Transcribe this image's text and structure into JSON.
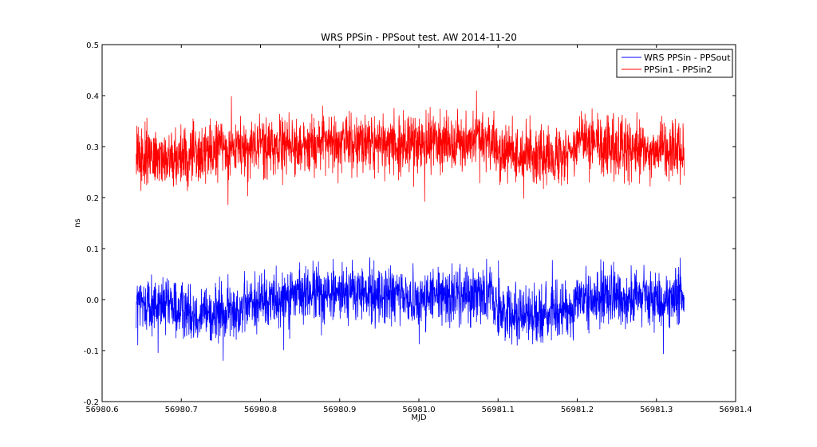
{
  "chart_data": {
    "type": "line",
    "title": "WRS PPSin - PPSout test. AW 2014-11-20",
    "xlabel": "MJD",
    "ylabel": "ns",
    "xlim": [
      56980.6,
      56981.4
    ],
    "ylim": [
      -0.2,
      0.5
    ],
    "xticks": [
      "56980.6",
      "56980.7",
      "56980.8",
      "56980.9",
      "56981.0",
      "56981.1",
      "56981.2",
      "56981.3",
      "56981.4"
    ],
    "yticks": [
      "-0.2",
      "-0.1",
      "0.0",
      "0.1",
      "0.2",
      "0.3",
      "0.4",
      "0.5"
    ],
    "grid": false,
    "legend_position": "top-right",
    "series": [
      {
        "name": "WRS PPSin - PPSout",
        "color": "#0000ff",
        "x_range": [
          56980.643,
          56981.335
        ],
        "baseline": [
          [
            56980.643,
            -0.005
          ],
          [
            56980.7,
            -0.02
          ],
          [
            56980.75,
            -0.03
          ],
          [
            56980.8,
            0.0
          ],
          [
            56980.85,
            0.01
          ],
          [
            56980.9,
            0.015
          ],
          [
            56980.95,
            0.01
          ],
          [
            56981.0,
            0.0
          ],
          [
            56981.05,
            0.01
          ],
          [
            56981.09,
            0.015
          ],
          [
            56981.1,
            -0.02
          ],
          [
            56981.15,
            -0.03
          ],
          [
            56981.19,
            -0.02
          ],
          [
            56981.2,
            0.0
          ],
          [
            56981.25,
            0.005
          ],
          [
            56981.3,
            0.0
          ],
          [
            56981.335,
            0.0
          ]
        ],
        "envelope": [
          -0.12,
          0.13
        ]
      },
      {
        "name": "PPSin1 - PPSin2",
        "color": "#ff0000",
        "x_range": [
          56980.643,
          56981.335
        ],
        "baseline": [
          [
            56980.643,
            0.28
          ],
          [
            56980.7,
            0.28
          ],
          [
            56980.75,
            0.29
          ],
          [
            56980.8,
            0.3
          ],
          [
            56980.85,
            0.3
          ],
          [
            56980.88,
            0.31
          ],
          [
            56980.9,
            0.31
          ],
          [
            56980.95,
            0.31
          ],
          [
            56981.0,
            0.305
          ],
          [
            56981.05,
            0.31
          ],
          [
            56981.09,
            0.315
          ],
          [
            56981.1,
            0.29
          ],
          [
            56981.15,
            0.285
          ],
          [
            56981.19,
            0.29
          ],
          [
            56981.21,
            0.315
          ],
          [
            56981.25,
            0.295
          ],
          [
            56981.3,
            0.29
          ],
          [
            56981.335,
            0.29
          ]
        ],
        "envelope": [
          0.18,
          0.41
        ]
      }
    ]
  }
}
